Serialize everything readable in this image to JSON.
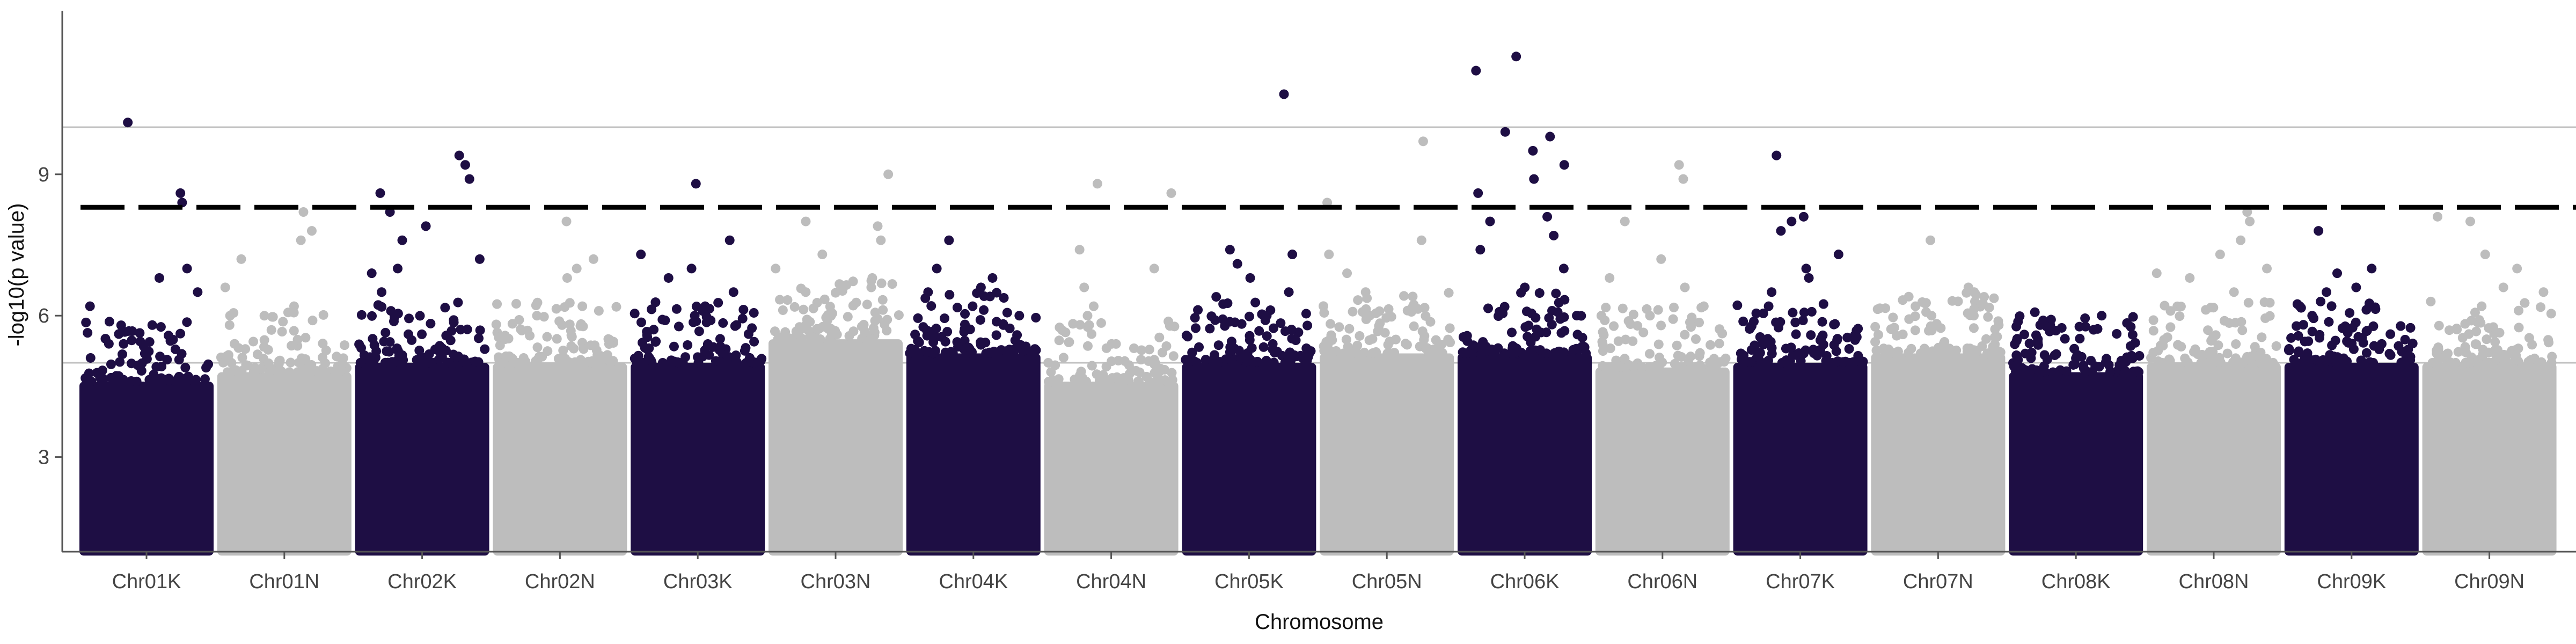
{
  "chart_data": {
    "type": "scatter",
    "subtype": "manhattan",
    "xlabel": "Chromosome",
    "ylabel": "-log10(p value)",
    "yticks": [
      3,
      6,
      9
    ],
    "ylim": [
      0,
      11.8
    ],
    "min_plotted_value": 1.0,
    "reference_lines": [
      5,
      10
    ],
    "significance_threshold": 8.3,
    "grid": false,
    "legend": "none",
    "colors": {
      "odd": "#1e0e44",
      "even": "#bdbdbd",
      "threshold": "#000000",
      "reference": "#c0c0c0"
    },
    "chromosomes": [
      {
        "name": "Chr01K",
        "bulk": 4.6,
        "max": 10.1,
        "top": [
          10.1,
          8.6,
          8.4,
          7.0,
          6.8,
          6.5,
          6.2,
          5.8
        ]
      },
      {
        "name": "Chr01N",
        "bulk": 4.8,
        "max": 8.2,
        "top": [
          8.2,
          7.8,
          7.6,
          7.2,
          6.6,
          6.2,
          6.0,
          5.8
        ]
      },
      {
        "name": "Chr02K",
        "bulk": 5.0,
        "max": 9.4,
        "top": [
          9.4,
          9.2,
          8.9,
          8.6,
          8.2,
          7.9,
          7.6,
          7.2,
          7.0,
          6.9,
          6.5
        ]
      },
      {
        "name": "Chr02N",
        "bulk": 5.0,
        "max": 8.0,
        "top": [
          8.0,
          7.2,
          7.0,
          6.8,
          6.2,
          6.0,
          5.8
        ]
      },
      {
        "name": "Chr03K",
        "bulk": 5.0,
        "max": 8.8,
        "top": [
          8.8,
          7.6,
          7.3,
          7.0,
          6.8,
          6.5,
          6.2,
          5.9
        ]
      },
      {
        "name": "Chr03N",
        "bulk": 5.5,
        "max": 9.0,
        "top": [
          9.0,
          8.0,
          7.9,
          7.6,
          7.3,
          7.0,
          6.8,
          6.6,
          6.5
        ]
      },
      {
        "name": "Chr04K",
        "bulk": 5.2,
        "max": 7.6,
        "top": [
          7.6,
          7.0,
          6.8,
          6.6,
          6.5,
          6.2,
          6.0,
          5.8
        ]
      },
      {
        "name": "Chr04N",
        "bulk": 4.6,
        "max": 8.8,
        "top": [
          8.8,
          8.6,
          7.4,
          7.0,
          6.6,
          6.2,
          6.0,
          5.8
        ]
      },
      {
        "name": "Chr05K",
        "bulk": 5.0,
        "max": 10.7,
        "top": [
          10.7,
          7.4,
          7.3,
          7.1,
          6.8,
          6.5,
          6.4
        ]
      },
      {
        "name": "Chr05N",
        "bulk": 5.2,
        "max": 9.7,
        "top": [
          9.7,
          8.4,
          7.6,
          7.3,
          6.9,
          6.5,
          6.2,
          6.0
        ]
      },
      {
        "name": "Chr06K",
        "bulk": 5.2,
        "max": 11.5,
        "top": [
          11.5,
          11.2,
          9.9,
          9.8,
          9.5,
          9.2,
          8.9,
          8.6,
          8.1,
          8.0,
          7.7,
          7.4,
          7.0,
          6.6
        ]
      },
      {
        "name": "Chr06N",
        "bulk": 4.9,
        "max": 9.2,
        "top": [
          9.2,
          8.9,
          8.0,
          7.2,
          6.8,
          6.6,
          6.2,
          6.0
        ]
      },
      {
        "name": "Chr07K",
        "bulk": 5.0,
        "max": 9.4,
        "top": [
          9.4,
          8.1,
          8.0,
          7.8,
          7.3,
          7.0,
          6.8,
          6.5,
          6.2
        ]
      },
      {
        "name": "Chr07N",
        "bulk": 5.2,
        "max": 7.6,
        "top": [
          7.6,
          6.6,
          6.5,
          6.4,
          6.2,
          6.0,
          5.8
        ]
      },
      {
        "name": "Chr08K",
        "bulk": 4.8,
        "max": 6.0,
        "top": [
          6.0,
          5.8,
          5.7,
          5.6,
          5.5
        ]
      },
      {
        "name": "Chr08N",
        "bulk": 5.0,
        "max": 8.2,
        "top": [
          8.2,
          8.0,
          7.6,
          7.3,
          7.0,
          6.9,
          6.8,
          6.5
        ]
      },
      {
        "name": "Chr09K",
        "bulk": 5.0,
        "max": 7.8,
        "top": [
          7.8,
          7.0,
          6.9,
          6.6,
          6.5,
          6.3,
          6.2,
          6.0
        ]
      },
      {
        "name": "Chr09N",
        "bulk": 5.0,
        "max": 8.1,
        "top": [
          8.1,
          8.0,
          7.3,
          7.0,
          6.6,
          6.5,
          6.3,
          6.2
        ]
      }
    ]
  }
}
